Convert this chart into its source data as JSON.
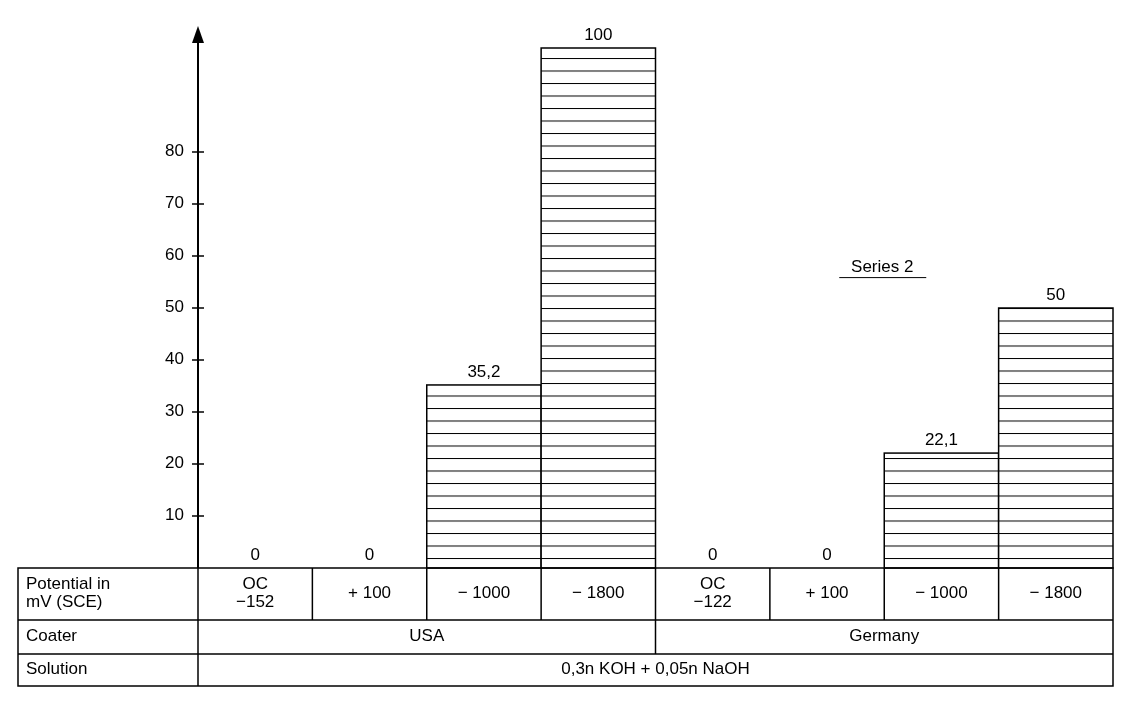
{
  "chart_data": {
    "type": "bar",
    "categories": [
      "OC\n−152",
      "+ 100",
      "− 1000",
      "− 1800",
      "OC\n−122",
      "+ 100",
      "− 1000",
      "− 1800"
    ],
    "values": [
      0,
      0,
      35.2,
      100,
      0,
      0,
      22.1,
      50
    ],
    "value_labels": [
      "0",
      "0",
      "35,2",
      "100",
      "0",
      "0",
      "22,1",
      "50"
    ],
    "color": "#000000",
    "ylim": [
      0,
      100
    ],
    "yticks": [
      10,
      20,
      30,
      40,
      50,
      60,
      70,
      80
    ],
    "grid": false,
    "annotations": [
      "Series 2",
      "Potential in mV (SCE)",
      "Coater",
      "USA",
      "Germany",
      "Solution",
      "0,3n KOH + 0,05n NaOH"
    ]
  }
}
